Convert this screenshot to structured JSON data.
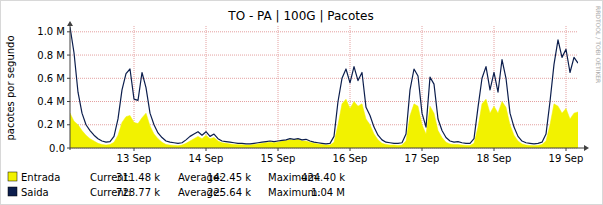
{
  "chart_data": {
    "type": "line",
    "title": "TO - PA | 100G | Pacotes",
    "y_label": "pacotes por segundo",
    "credit": "RRDTOOL / TOBI OETIKER",
    "grid": true,
    "legend": "bottom",
    "categories": [
      null,
      null,
      null,
      null,
      null,
      null,
      null,
      null,
      null,
      null,
      null,
      null,
      null,
      null,
      null,
      null,
      "13 Sep",
      null,
      null,
      null,
      null,
      null,
      null,
      null,
      null,
      null,
      null,
      null,
      null,
      null,
      null,
      null,
      null,
      null,
      "14 Sep",
      null,
      null,
      null,
      null,
      null,
      null,
      null,
      null,
      null,
      null,
      null,
      null,
      null,
      null,
      null,
      null,
      null,
      "15 Sep",
      null,
      null,
      null,
      null,
      null,
      null,
      null,
      null,
      null,
      null,
      null,
      null,
      null,
      null,
      null,
      null,
      null,
      "16 Sep",
      null,
      null,
      null,
      null,
      null,
      null,
      null,
      null,
      null,
      null,
      null,
      null,
      null,
      null,
      null,
      null,
      null,
      "17 Sep",
      null,
      null,
      null,
      null,
      null,
      null,
      null,
      null,
      null,
      null,
      null,
      null,
      null,
      null,
      null,
      null,
      null,
      "18 Sep",
      null,
      null,
      null,
      null,
      null,
      null,
      null,
      null,
      null,
      null,
      null,
      null,
      null,
      null,
      null,
      null,
      null,
      "19 Sep",
      null,
      null,
      null
    ],
    "ylim": [
      0,
      1050000
    ],
    "yticks": [
      {
        "value": 0,
        "label": "0.0"
      },
      {
        "value": 200000,
        "label": "0.2 M"
      },
      {
        "value": 400000,
        "label": "0.4 M"
      },
      {
        "value": 600000,
        "label": "0.6 M"
      },
      {
        "value": 800000,
        "label": "0.8 M"
      },
      {
        "value": 1000000,
        "label": "1.0 M"
      }
    ],
    "series": [
      {
        "name": "Entrada",
        "type": "area",
        "color": "#f2f200",
        "stats": [
          {
            "label": "Current:",
            "text": "311.48 k"
          },
          {
            "label": "Average:",
            "text": "142.45 k"
          },
          {
            "label": "Maximum:",
            "text": "424.40 k"
          }
        ],
        "values": [
          300000,
          230000,
          200000,
          150000,
          110000,
          80000,
          60000,
          40000,
          30000,
          25000,
          30000,
          50000,
          110000,
          220000,
          270000,
          280000,
          220000,
          210000,
          260000,
          300000,
          190000,
          120000,
          80000,
          50000,
          30000,
          25000,
          22000,
          20000,
          25000,
          40000,
          60000,
          80000,
          100000,
          80000,
          110000,
          80000,
          90000,
          60000,
          45000,
          40000,
          35000,
          30000,
          28000,
          28000,
          25000,
          25000,
          30000,
          35000,
          40000,
          45000,
          50000,
          45000,
          50000,
          60000,
          65000,
          70000,
          70000,
          75000,
          60000,
          60000,
          50000,
          40000,
          35000,
          30000,
          25000,
          25000,
          50000,
          200000,
          380000,
          420000,
          340000,
          400000,
          360000,
          380000,
          250000,
          200000,
          120000,
          70000,
          40000,
          30000,
          25000,
          25000,
          22000,
          25000,
          60000,
          280000,
          380000,
          360000,
          200000,
          120000,
          360000,
          300000,
          150000,
          90000,
          50000,
          35000,
          30000,
          30000,
          25000,
          22000,
          22000,
          40000,
          180000,
          380000,
          420000,
          300000,
          360000,
          300000,
          400000,
          350000,
          200000,
          110000,
          60000,
          35000,
          25000,
          22000,
          20000,
          22000,
          30000,
          60000,
          200000,
          380000,
          360000,
          300000,
          340000,
          250000,
          300000,
          310000
        ]
      },
      {
        "name": "Saida",
        "type": "line",
        "color": "#0c1e4d",
        "stats": [
          {
            "label": "Current:",
            "text": "728.77 k"
          },
          {
            "label": "Average:",
            "text": "225.64 k"
          },
          {
            "label": "Maximum:",
            "text": "1.04 M"
          }
        ],
        "values": [
          1040000,
          820000,
          480000,
          300000,
          200000,
          150000,
          110000,
          80000,
          60000,
          50000,
          55000,
          100000,
          250000,
          500000,
          640000,
          680000,
          420000,
          410000,
          650000,
          520000,
          300000,
          200000,
          130000,
          90000,
          60000,
          50000,
          45000,
          40000,
          45000,
          70000,
          100000,
          120000,
          140000,
          110000,
          140000,
          100000,
          120000,
          80000,
          60000,
          55000,
          50000,
          45000,
          40000,
          40000,
          35000,
          35000,
          40000,
          45000,
          50000,
          55000,
          60000,
          55000,
          60000,
          65000,
          70000,
          80000,
          75000,
          80000,
          70000,
          75000,
          60000,
          50000,
          45000,
          40000,
          35000,
          40000,
          100000,
          400000,
          600000,
          680000,
          560000,
          700000,
          580000,
          650000,
          350000,
          280000,
          180000,
          110000,
          70000,
          50000,
          45000,
          40000,
          40000,
          45000,
          120000,
          500000,
          680000,
          620000,
          300000,
          180000,
          610000,
          550000,
          250000,
          150000,
          90000,
          60000,
          50000,
          55000,
          45000,
          40000,
          40000,
          80000,
          350000,
          600000,
          700000,
          500000,
          650000,
          480000,
          760000,
          600000,
          300000,
          180000,
          100000,
          60000,
          45000,
          40000,
          35000,
          40000,
          50000,
          120000,
          400000,
          720000,
          930000,
          780000,
          850000,
          650000,
          780000,
          730000
        ]
      }
    ]
  }
}
